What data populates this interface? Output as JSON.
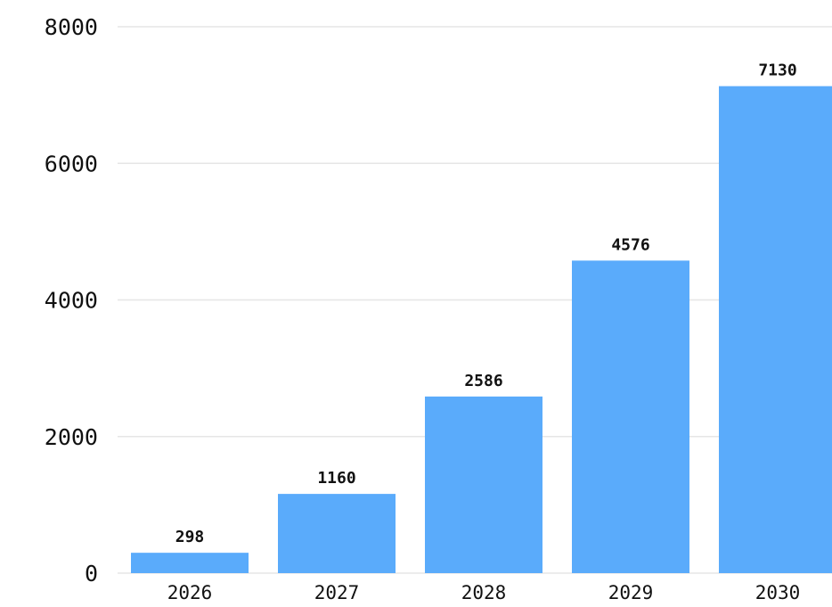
{
  "chart_data": {
    "type": "bar",
    "categories": [
      "2026",
      "2027",
      "2028",
      "2029",
      "2030"
    ],
    "values": [
      298,
      1160,
      2586,
      4576,
      7130
    ],
    "ylim": [
      0,
      8000
    ],
    "yticks": [
      0,
      2000,
      4000,
      6000,
      8000
    ],
    "data_labels": [
      "298",
      "1160",
      "2586",
      "4576",
      "7130"
    ],
    "bar_color": "#5aabfb",
    "grid": true,
    "legend": "none",
    "title": "",
    "xlabel": "",
    "ylabel": ""
  }
}
